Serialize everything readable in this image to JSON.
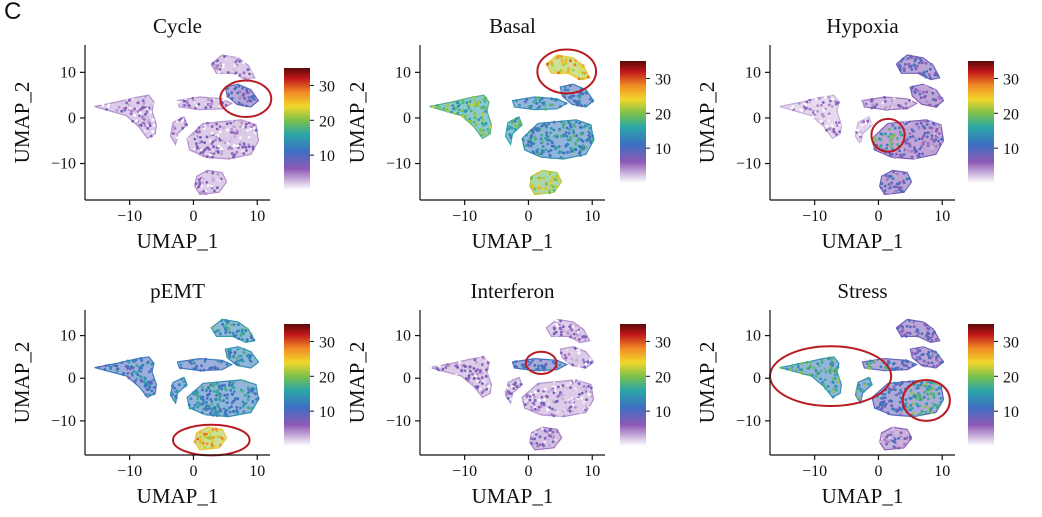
{
  "figure": {
    "panel_label": "C"
  },
  "colors": {
    "low": "#ffffff",
    "purple": "#8e5ab5",
    "blue": "#3d6fc2",
    "teal": "#2ba6a6",
    "green": "#7cc14c",
    "yellow": "#f2d62c",
    "orange": "#f08a24",
    "red": "#c0161a",
    "dark_red": "#5a0a0a",
    "ellipse": "#b81c23"
  },
  "chart_data": [
    {
      "type": "scatter",
      "title": "Cycle",
      "xlabel": "UMAP_1",
      "ylabel": "UMAP_2",
      "xlim": [
        -17,
        12
      ],
      "ylim": [
        -18,
        16
      ],
      "xticks": [
        -10,
        0,
        10
      ],
      "yticks": [
        10,
        0,
        -10
      ],
      "colorbar": {
        "min": 0,
        "max": 35,
        "ticks": [
          30,
          20,
          10
        ]
      },
      "cluster_levels": {
        "left": 4,
        "mid": 4,
        "small": 4,
        "right_top": 4,
        "right_upper": 9,
        "bottom": 4,
        "bottom_small": 4
      },
      "highlight": [
        {
          "cx": 8.2,
          "cy": 4.2,
          "rx": 4.0,
          "ry": 4.0
        }
      ]
    },
    {
      "type": "scatter",
      "title": "Basal",
      "xlabel": "UMAP_1",
      "ylabel": "UMAP_2",
      "xlim": [
        -17,
        12
      ],
      "ylim": [
        -18,
        16
      ],
      "xticks": [
        -10,
        0,
        10
      ],
      "yticks": [
        10,
        0,
        -10
      ],
      "colorbar": {
        "min": 0,
        "max": 35,
        "ticks": [
          30,
          20,
          10
        ]
      },
      "cluster_levels": {
        "left": 18,
        "mid": 14,
        "small": 16,
        "right_top": 25,
        "right_upper": 12,
        "bottom": 14,
        "bottom_small": 22
      },
      "highlight": [
        {
          "cx": 6.0,
          "cy": 10.2,
          "rx": 4.6,
          "ry": 4.8
        }
      ]
    },
    {
      "type": "scatter",
      "title": "Hypoxia",
      "xlabel": "UMAP_1",
      "ylabel": "UMAP_2",
      "xlim": [
        -17,
        12
      ],
      "ylim": [
        -18,
        16
      ],
      "xticks": [
        -10,
        0,
        10
      ],
      "yticks": [
        10,
        0,
        -10
      ],
      "colorbar": {
        "min": 0,
        "max": 35,
        "ticks": [
          30,
          20,
          10
        ]
      },
      "cluster_levels": {
        "left": 3,
        "mid": 5,
        "small": 3,
        "right_top": 8,
        "right_upper": 7,
        "bottom": 7,
        "bottom_small": 8,
        "hot_region": 16
      },
      "highlight": [
        {
          "cx": 1.5,
          "cy": -3.8,
          "rx": 2.6,
          "ry": 3.6
        }
      ]
    },
    {
      "type": "scatter",
      "title": "pEMT",
      "xlabel": "UMAP_1",
      "ylabel": "UMAP_2",
      "xlim": [
        -17,
        12
      ],
      "ylim": [
        -18,
        16
      ],
      "xticks": [
        -10,
        0,
        10
      ],
      "yticks": [
        10,
        0,
        -10
      ],
      "colorbar": {
        "min": 0,
        "max": 35,
        "ticks": [
          30,
          20,
          10
        ]
      },
      "cluster_levels": {
        "left": 12,
        "mid": 12,
        "small": 13,
        "right_top": 15,
        "right_upper": 14,
        "bottom": 14,
        "bottom_small": 25
      },
      "highlight": [
        {
          "cx": 2.8,
          "cy": -14.5,
          "rx": 6.0,
          "ry": 3.6
        }
      ]
    },
    {
      "type": "scatter",
      "title": "Interferon",
      "xlabel": "UMAP_1",
      "ylabel": "UMAP_2",
      "xlim": [
        -17,
        12
      ],
      "ylim": [
        -18,
        16
      ],
      "xticks": [
        -10,
        0,
        10
      ],
      "yticks": [
        10,
        0,
        -10
      ],
      "colorbar": {
        "min": 0,
        "max": 35,
        "ticks": [
          30,
          20,
          10
        ]
      },
      "cluster_levels": {
        "left": 4,
        "mid": 11,
        "small": 4,
        "right_top": 4,
        "right_upper": 4,
        "bottom": 4,
        "bottom_small": 5
      },
      "highlight": [
        {
          "cx": 2.0,
          "cy": 3.6,
          "rx": 2.4,
          "ry": 2.6
        }
      ]
    },
    {
      "type": "scatter",
      "title": "Stress",
      "xlabel": "UMAP_1",
      "ylabel": "UMAP_2",
      "xlim": [
        -17,
        12
      ],
      "ylim": [
        -18,
        16
      ],
      "xticks": [
        -10,
        0,
        10
      ],
      "yticks": [
        10,
        0,
        -10
      ],
      "colorbar": {
        "min": 0,
        "max": 35,
        "ticks": [
          30,
          20,
          10
        ]
      },
      "cluster_levels": {
        "left": 14,
        "mid": 9,
        "small": 13,
        "right_top": 8,
        "right_upper": 8,
        "bottom": 10,
        "bottom_small": 6,
        "hot_region": 17
      },
      "highlight": [
        {
          "cx": -7.5,
          "cy": 0.5,
          "rx": 9.5,
          "ry": 7.0
        },
        {
          "cx": 7.5,
          "cy": -5.2,
          "rx": 3.7,
          "ry": 4.8
        }
      ]
    }
  ]
}
